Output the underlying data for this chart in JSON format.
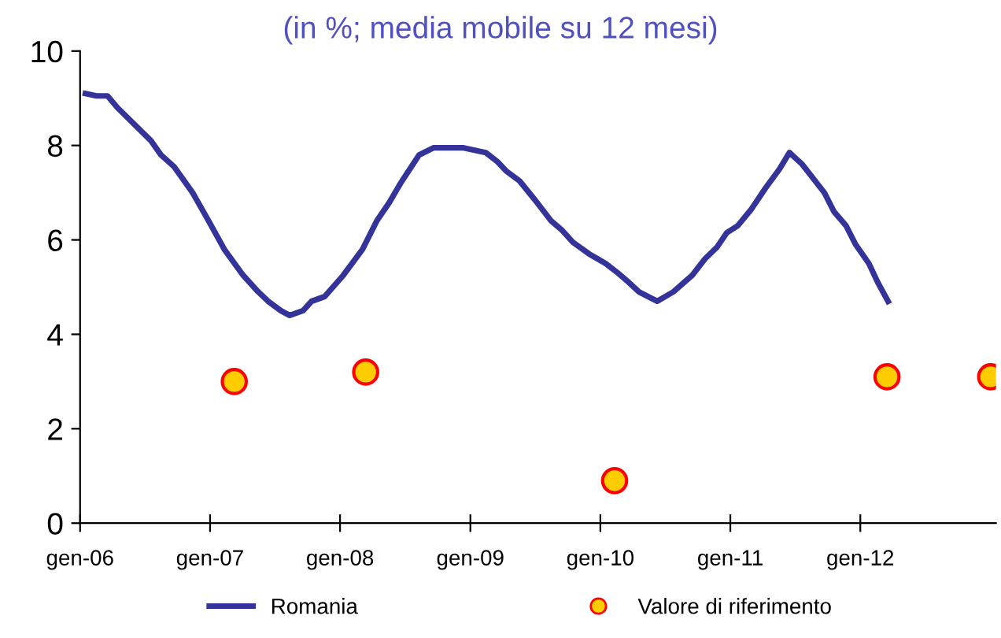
{
  "chart_data": {
    "type": "line",
    "subtitle": "(in %; media mobile su 12 mesi)",
    "xlim": [
      "2006-01-01",
      "2013-01-16"
    ],
    "ylim": [
      0,
      10
    ],
    "yticks": [
      0,
      2,
      4,
      6,
      8,
      10
    ],
    "xticks": [
      {
        "value": "2006-01-01",
        "label": "gen-06"
      },
      {
        "value": "2007-01-01",
        "label": "gen-07"
      },
      {
        "value": "2008-01-01",
        "label": "gen-08"
      },
      {
        "value": "2009-01-01",
        "label": "gen-09"
      },
      {
        "value": "2010-01-01",
        "label": "gen-10"
      },
      {
        "value": "2011-01-01",
        "label": "gen-11"
      },
      {
        "value": "2012-01-01",
        "label": "gen-12"
      }
    ],
    "legend": "bottom",
    "series": [
      {
        "name": "Romania",
        "color": "#333399",
        "marker": "none",
        "line_style": "solid",
        "x": [
          "2006-01-16",
          "2006-02-16",
          "2006-03-19",
          "2006-04-16",
          "2006-07-19",
          "2006-08-16",
          "2006-09-22",
          "2006-11-13",
          "2006-12-28",
          "2007-02-10",
          "2007-04-04",
          "2007-05-16",
          "2007-06-13",
          "2007-07-19",
          "2007-08-13",
          "2007-09-19",
          "2007-10-13",
          "2007-11-19",
          "2008-01-10",
          "2008-03-04",
          "2008-04-13",
          "2008-05-19",
          "2008-06-19",
          "2008-08-10",
          "2008-09-19",
          "2008-12-13",
          "2009-02-13",
          "2009-03-19",
          "2009-04-13",
          "2009-05-19",
          "2009-07-01",
          "2009-08-16",
          "2009-09-16",
          "2009-10-16",
          "2009-12-01",
          "2010-01-16",
          "2010-02-19",
          "2010-03-22",
          "2010-04-19",
          "2010-06-10",
          "2010-07-25",
          "2010-09-16",
          "2010-10-22",
          "2010-11-25",
          "2010-12-22",
          "2011-01-22",
          "2011-03-01",
          "2011-04-10",
          "2011-05-19",
          "2011-06-16",
          "2011-07-22",
          "2011-09-22",
          "2011-10-19",
          "2011-11-22",
          "2011-12-19",
          "2012-01-25",
          "2012-02-19",
          "2012-03-19"
        ],
        "values": [
          9.1,
          9.05,
          9.05,
          8.8,
          8.1,
          7.8,
          7.55,
          7.0,
          6.4,
          5.8,
          5.25,
          4.9,
          4.7,
          4.5,
          4.4,
          4.5,
          4.7,
          4.8,
          5.25,
          5.8,
          6.4,
          6.8,
          7.2,
          7.8,
          7.95,
          7.95,
          7.85,
          7.65,
          7.45,
          7.25,
          6.85,
          6.4,
          6.2,
          5.95,
          5.7,
          5.5,
          5.3,
          5.1,
          4.9,
          4.7,
          4.9,
          5.25,
          5.6,
          5.85,
          6.15,
          6.3,
          6.65,
          7.1,
          7.5,
          7.85,
          7.6,
          7.0,
          6.6,
          6.3,
          5.9,
          5.5,
          5.1,
          4.7
        ]
      },
      {
        "name": "Valore di riferimento",
        "type": "scatter",
        "color": "#ffcc00",
        "marker": "circle",
        "x": [
          "2007-03-10",
          "2008-03-13",
          "2010-02-10",
          "2012-03-16",
          "2013-01-01"
        ],
        "values": [
          3.0,
          3.2,
          0.9,
          3.1,
          3.1
        ]
      }
    ]
  }
}
